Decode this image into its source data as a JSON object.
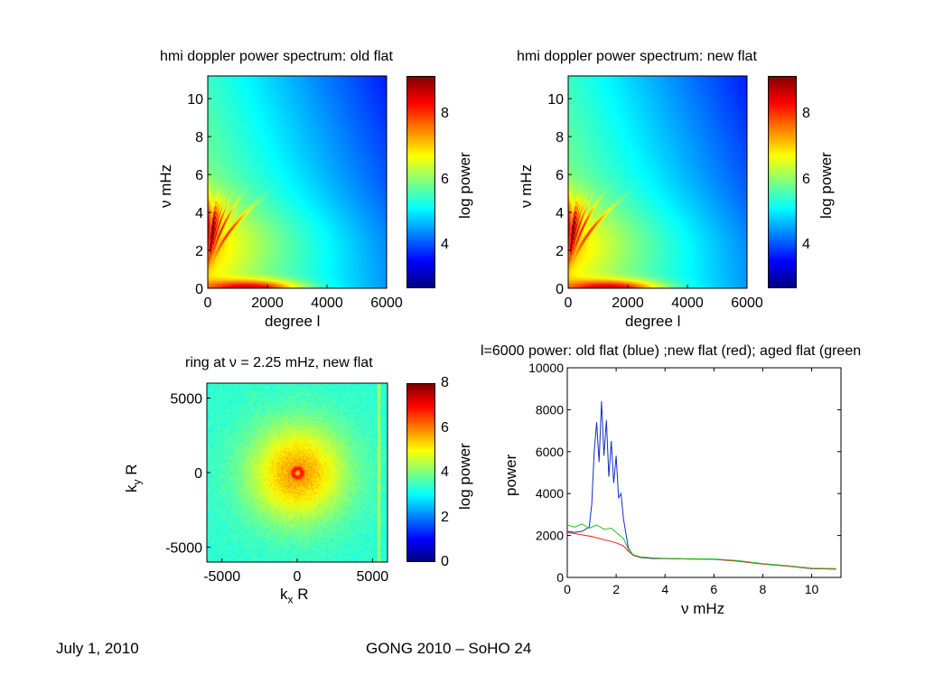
{
  "footer": {
    "date": "July 1, 2010",
    "conference": "GONG 2010 – SoHO 24"
  },
  "colors": {
    "old_flat": "#1030c0",
    "new_flat": "#e02020",
    "aged_flat": "#20c020"
  },
  "chart_data": [
    {
      "type": "heatmap",
      "title": "hmi doppler power spectrum: old flat",
      "xlabel": "degree l",
      "ylabel": "ν mHz",
      "xlim": [
        0,
        6000
      ],
      "ylim": [
        0,
        11.2
      ],
      "xticks": [
        "0",
        "2000",
        "4000",
        "6000"
      ],
      "yticks": [
        "0",
        "2",
        "4",
        "6",
        "8",
        "10"
      ],
      "colorbar": {
        "label": "log power",
        "range": [
          2.8,
          9.2
        ],
        "ticks": [
          "4",
          "6",
          "8"
        ]
      }
    },
    {
      "type": "heatmap",
      "title": "hmi doppler power spectrum: new flat",
      "xlabel": "degree l",
      "ylabel": "ν mHz",
      "xlim": [
        0,
        6000
      ],
      "ylim": [
        0,
        11.2
      ],
      "xticks": [
        "0",
        "2000",
        "4000",
        "6000"
      ],
      "yticks": [
        "0",
        "2",
        "4",
        "6",
        "8",
        "10"
      ],
      "colorbar": {
        "label": "log power",
        "range": [
          2.8,
          9.2
        ],
        "ticks": [
          "4",
          "6",
          "8"
        ]
      }
    },
    {
      "type": "heatmap",
      "title": "ring at ν = 2.25 mHz, new flat",
      "xlabel": "kx R",
      "xlabel_main": "k",
      "xlabel_sub": "x",
      "xlabel_tail": " R",
      "ylabel_main": "k",
      "ylabel_sub": "y",
      "ylabel_tail": " R",
      "xlim": [
        -6000,
        6000
      ],
      "ylim": [
        -6000,
        6000
      ],
      "xticks": [
        "-5000",
        "0",
        "5000"
      ],
      "yticks": [
        "5000",
        "0",
        "-5000"
      ],
      "colorbar": {
        "label": "log power",
        "range": [
          0,
          8
        ],
        "ticks": [
          "8",
          "6",
          "4",
          "2",
          "0"
        ]
      }
    },
    {
      "type": "line",
      "title": "l=6000 power: old flat (blue) ;new flat (red); aged flat (green",
      "xlabel": "ν mHz",
      "ylabel": "power",
      "xlim": [
        0,
        11.2
      ],
      "ylim": [
        0,
        10000
      ],
      "xticks": [
        "0",
        "2",
        "4",
        "6",
        "8",
        "10"
      ],
      "yticks": [
        "10000",
        "8000",
        "6000",
        "4000",
        "2000",
        "0"
      ],
      "series": [
        {
          "color": "old_flat",
          "x": [
            0,
            0.3,
            0.6,
            0.9,
            1.0,
            1.1,
            1.2,
            1.3,
            1.4,
            1.5,
            1.6,
            1.7,
            1.8,
            1.9,
            2.0,
            2.1,
            2.2,
            2.3,
            2.5,
            2.7,
            3.0,
            3.5,
            4.0,
            5.0,
            6.0,
            7.0,
            8.0,
            9.0,
            10.0,
            11.0
          ],
          "y": [
            2200,
            2150,
            2200,
            2400,
            3500,
            6000,
            7400,
            5500,
            8400,
            5800,
            7500,
            4800,
            6500,
            4500,
            5800,
            3800,
            4000,
            2800,
            1400,
            1050,
            950,
            900,
            900,
            880,
            870,
            780,
            650,
            550,
            420,
            400
          ]
        },
        {
          "color": "new_flat",
          "x": [
            0,
            0.5,
            1.0,
            1.5,
            2.0,
            2.3,
            2.5,
            2.7,
            3.0,
            3.5,
            4.0,
            5.0,
            6.0,
            7.0,
            8.0,
            9.0,
            10.0,
            11.0
          ],
          "y": [
            2150,
            2050,
            1950,
            1800,
            1650,
            1500,
            1250,
            1050,
            960,
            920,
            900,
            880,
            860,
            770,
            640,
            540,
            420,
            400
          ]
        },
        {
          "color": "aged_flat",
          "x": [
            0,
            0.3,
            0.6,
            0.9,
            1.2,
            1.5,
            1.8,
            2.1,
            2.3,
            2.5,
            2.7,
            3.0,
            3.5,
            4.0,
            5.0,
            6.0,
            7.0,
            8.0,
            9.0,
            10.0,
            11.0
          ],
          "y": [
            2500,
            2400,
            2550,
            2350,
            2500,
            2300,
            2350,
            2050,
            1850,
            1350,
            1080,
            980,
            930,
            910,
            890,
            880,
            800,
            660,
            560,
            440,
            420
          ]
        }
      ]
    }
  ]
}
